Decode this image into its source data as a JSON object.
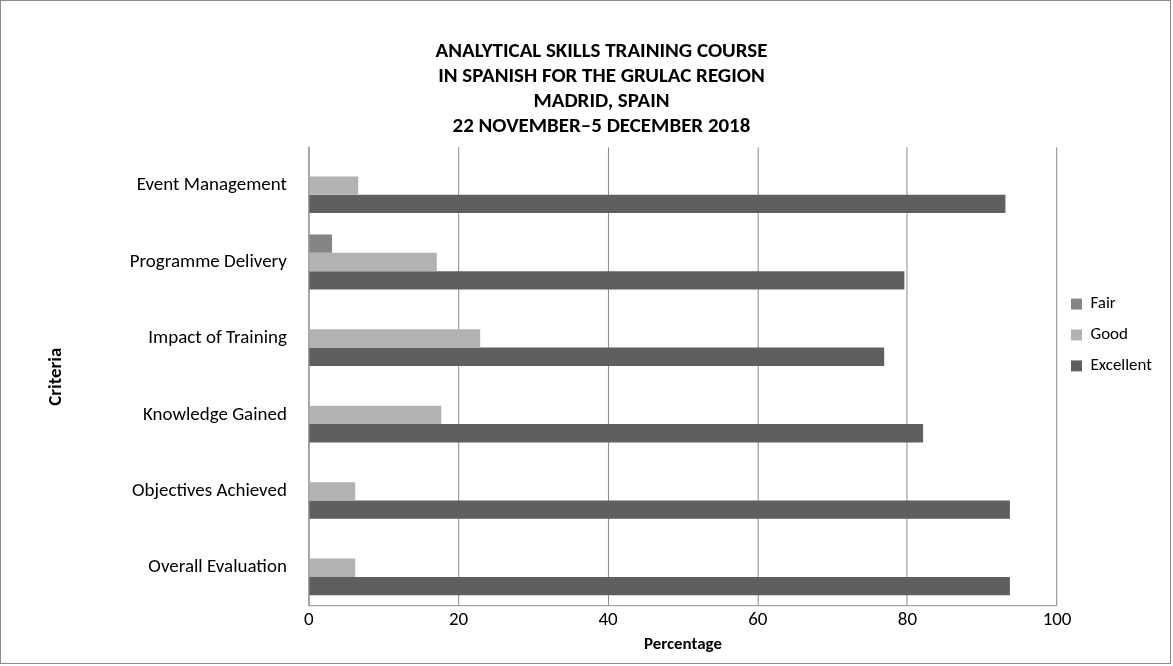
{
  "chart_data": {
    "type": "bar",
    "orientation": "horizontal",
    "title": "ANALYTICAL SKILLS TRAINING COURSE\nIN SPANISH FOR THE GRULAC REGION\nMADRID, SPAIN\n22 NOVEMBER–5 DECEMBER 2018",
    "xlabel": "Percentage",
    "ylabel": "Criteria",
    "categories": [
      "Event Management",
      "Programme Delivery",
      "Impact of Training",
      "Knowledge Gained",
      "Objectives Achieved",
      "Overall Evaluation"
    ],
    "series": [
      {
        "name": "Fair",
        "color": "#858585",
        "values": [
          null,
          3.1,
          null,
          null,
          null,
          null
        ]
      },
      {
        "name": "Good",
        "color": "#b2b2b2",
        "values": [
          6.6,
          17.1,
          22.9,
          17.7,
          6.2,
          6.2
        ]
      },
      {
        "name": "Excellent",
        "color": "#5f5f5f",
        "values": [
          93.1,
          79.6,
          76.9,
          82.1,
          93.7,
          93.7
        ]
      }
    ],
    "xlim": [
      0,
      100
    ],
    "xticks": [
      0,
      20,
      40,
      60,
      80,
      100
    ],
    "grid": "x",
    "legend": "right"
  }
}
